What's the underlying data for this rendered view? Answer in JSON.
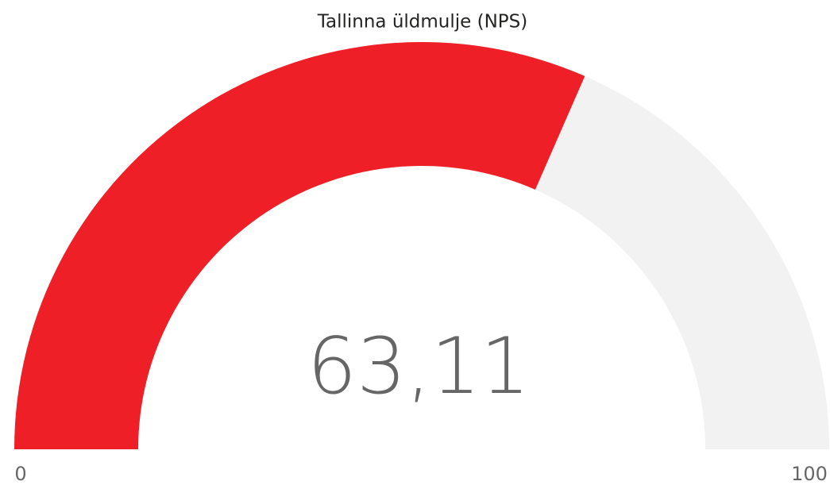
{
  "chart_data": {
    "type": "gauge",
    "title": "Tallinna üldmulje (NPS)",
    "value": 63.11,
    "value_label": "63,11",
    "min": 0,
    "max": 100,
    "color": "#ef1f27",
    "track_color": "#f2f2f2"
  }
}
